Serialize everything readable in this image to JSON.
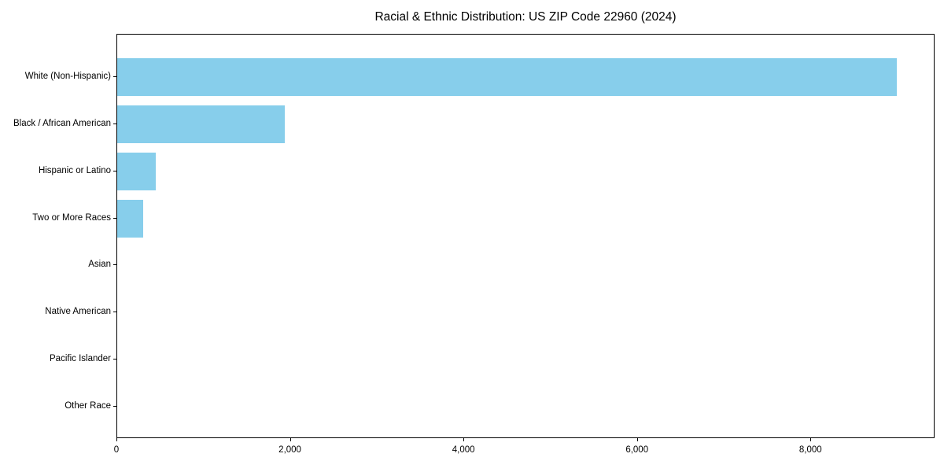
{
  "title": "Racial & Ethnic Distribution: US ZIP Code 22960 (2024)",
  "colors": {
    "bar": "#87CEEB",
    "spine": "#000000",
    "text": "#000000",
    "background": "#ffffff"
  },
  "chart_data": {
    "type": "bar",
    "orientation": "horizontal",
    "title": "Racial & Ethnic Distribution: US ZIP Code 22960 (2024)",
    "categories": [
      "White (Non-Hispanic)",
      "Black / African American",
      "Hispanic or Latino",
      "Two or More Races",
      "Asian",
      "Native American",
      "Pacific Islander",
      "Other Race"
    ],
    "values": [
      8982,
      1927,
      446,
      298,
      0,
      0,
      0,
      0
    ],
    "xlabel": "",
    "ylabel": "",
    "xlim": [
      0,
      9430
    ],
    "xticks": [
      0,
      2000,
      4000,
      6000,
      8000
    ],
    "xtick_labels": [
      "0",
      "2,000",
      "4,000",
      "6,000",
      "8,000"
    ],
    "bar_color": "#87CEEB",
    "grid": false,
    "legend": false,
    "category_order": "top-to-bottom"
  }
}
